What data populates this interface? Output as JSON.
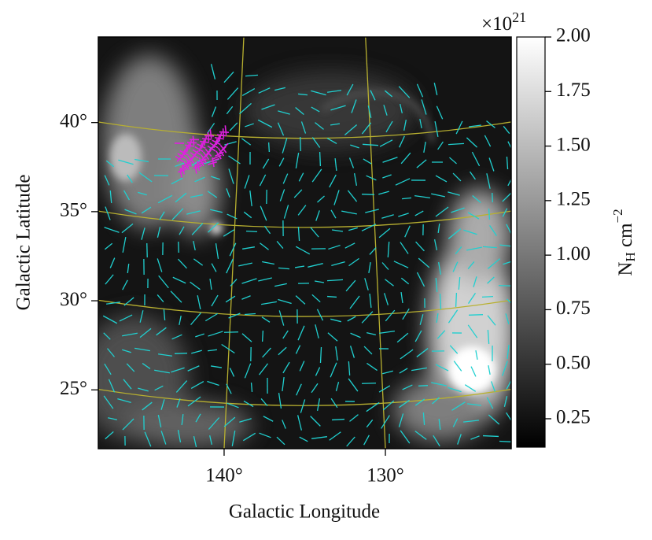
{
  "chart_data": {
    "type": "image",
    "xlabel": "Galactic Longitude",
    "ylabel": "Galactic Latitude",
    "xlim": [
      147.8,
      122.2
    ],
    "ylim": [
      21.7,
      44.8
    ],
    "xticks": [
      {
        "value": 140,
        "label": "140°"
      },
      {
        "value": 130,
        "label": "130°"
      }
    ],
    "yticks": [
      {
        "value": 40,
        "label": "40°"
      },
      {
        "value": 35,
        "label": "35°"
      },
      {
        "value": 30,
        "label": "30°"
      },
      {
        "value": 25,
        "label": "25°"
      }
    ],
    "grid": true,
    "grid_color": "#b8b030",
    "vector_color": "#20d0d0",
    "highlight_color": "#e020e0",
    "colorbar": {
      "symbol": "N",
      "subscript": "H",
      "unit": " cm",
      "exponent": "−2",
      "offset_base": "×10",
      "offset_exponent": "21",
      "clim": [
        0.12,
        2.0
      ],
      "ticks": [
        0.25,
        {
          "value": 0.5,
          "label": "0.50"
        },
        0.75,
        {
          "value": 1.0,
          "label": "1.00"
        },
        1.25,
        {
          "value": 1.5,
          "label": "1.50"
        },
        1.75,
        {
          "value": 2.0,
          "label": "2.00"
        }
      ]
    }
  }
}
